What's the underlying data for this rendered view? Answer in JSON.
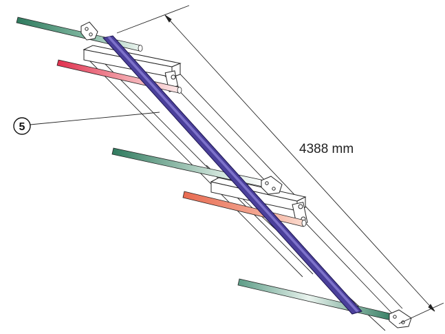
{
  "dimension": {
    "label": "4388 mm"
  },
  "callout": {
    "number": "5"
  },
  "colors": {
    "diagonal_brace": "#4a3f9a",
    "rod_green": "#3f8a6c",
    "rod_red": "#e0405a",
    "rod_orange": "#e9755c",
    "outline": "#222222"
  }
}
